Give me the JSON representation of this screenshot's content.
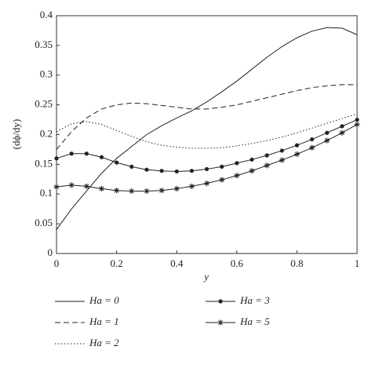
{
  "chart_data": {
    "type": "line",
    "x_label": "y",
    "y_label": "(dϕ/dy)",
    "x": [
      0,
      0.05,
      0.1,
      0.15,
      0.2,
      0.25,
      0.3,
      0.35,
      0.4,
      0.45,
      0.5,
      0.55,
      0.6,
      0.65,
      0.7,
      0.75,
      0.8,
      0.85,
      0.9,
      0.95,
      1
    ],
    "series": [
      {
        "name": "Ha = 0",
        "color": "#222",
        "style": "solid",
        "values": [
          0.04,
          0.075,
          0.105,
          0.135,
          0.16,
          0.18,
          0.2,
          0.215,
          0.228,
          0.24,
          0.255,
          0.272,
          0.29,
          0.31,
          0.33,
          0.348,
          0.363,
          0.374,
          0.38,
          0.379,
          0.368
        ]
      },
      {
        "name": "Ha = 1",
        "color": "#222",
        "style": "dashed",
        "values": [
          0.175,
          0.205,
          0.228,
          0.243,
          0.25,
          0.253,
          0.252,
          0.249,
          0.246,
          0.243,
          0.243,
          0.246,
          0.25,
          0.256,
          0.262,
          0.268,
          0.274,
          0.279,
          0.282,
          0.284,
          0.284
        ]
      },
      {
        "name": "Ha = 2",
        "color": "#222",
        "style": "dotted",
        "values": [
          0.205,
          0.218,
          0.222,
          0.217,
          0.207,
          0.197,
          0.188,
          0.182,
          0.179,
          0.177,
          0.177,
          0.178,
          0.181,
          0.185,
          0.19,
          0.196,
          0.203,
          0.211,
          0.219,
          0.227,
          0.235
        ]
      },
      {
        "name": "Ha = 3",
        "color": "#222",
        "style": "solid",
        "marker": "dot",
        "values": [
          0.16,
          0.168,
          0.168,
          0.162,
          0.153,
          0.146,
          0.141,
          0.139,
          0.138,
          0.139,
          0.142,
          0.146,
          0.152,
          0.158,
          0.165,
          0.173,
          0.182,
          0.192,
          0.203,
          0.214,
          0.225
        ]
      },
      {
        "name": "Ha = 5",
        "color": "#222",
        "style": "solid",
        "marker": "star",
        "values": [
          0.112,
          0.115,
          0.113,
          0.109,
          0.106,
          0.105,
          0.105,
          0.106,
          0.109,
          0.113,
          0.118,
          0.124,
          0.131,
          0.139,
          0.148,
          0.157,
          0.167,
          0.178,
          0.19,
          0.203,
          0.217
        ]
      }
    ],
    "xlim": [
      0,
      1
    ],
    "xticks": [
      0,
      0.2,
      0.4,
      0.6,
      0.8,
      1
    ],
    "ylim": [
      0,
      0.4
    ],
    "yticks": [
      0,
      0.05,
      0.1,
      0.15,
      0.2,
      0.25,
      0.3,
      0.35,
      0.4
    ],
    "grid": false
  }
}
